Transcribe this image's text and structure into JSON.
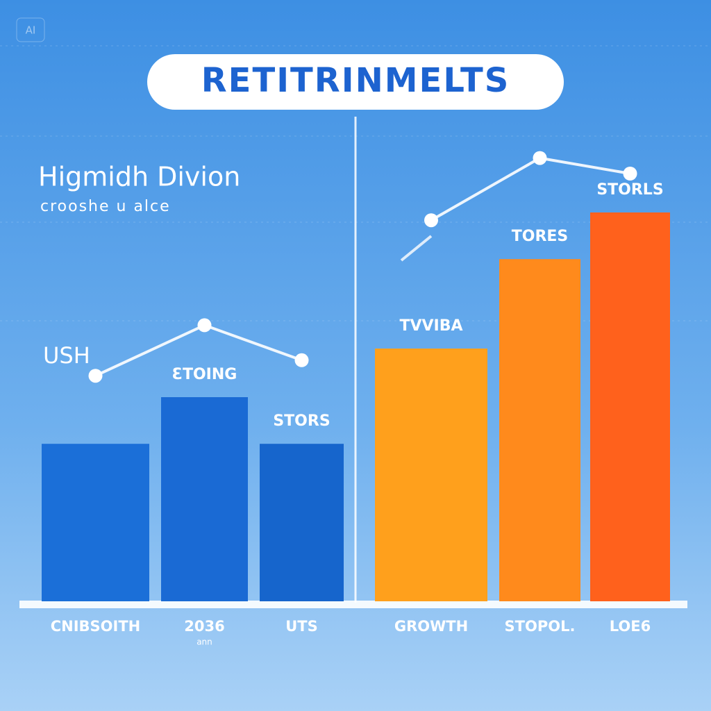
{
  "badge": "AI",
  "chart_data": {
    "type": "bar",
    "title": "RETITRINMELTS",
    "subtitle": "Higmidh Divion",
    "caption": "croοshe u alce",
    "annotation": "USH",
    "categories": [
      "CNIBSOITH",
      "2036",
      "UTS",
      "GROWTH",
      "STOPOL.",
      "LOE6"
    ],
    "category_sublabels": [
      null,
      "ann",
      null,
      null,
      null,
      null
    ],
    "values": [
      40.5,
      52.5,
      40.5,
      65,
      88,
      100
    ],
    "colors": [
      "#1b6fd8",
      "#1a6ad4",
      "#1665cc",
      "#ffa01c",
      "#ff8a1c",
      "#ff611c"
    ],
    "bar_labels": [
      null,
      "ƐTOING",
      "STORS",
      "TVVIBA",
      "TORES",
      "STORLS"
    ],
    "series": [
      {
        "type": "line",
        "color": "#ffffff",
        "values": [
          58,
          71,
          62,
          null,
          null,
          null
        ]
      },
      {
        "type": "line",
        "color": "#ffffff",
        "values": [
          null,
          null,
          null,
          98,
          114,
          110
        ]
      }
    ],
    "ylim": [
      0,
      125
    ]
  }
}
